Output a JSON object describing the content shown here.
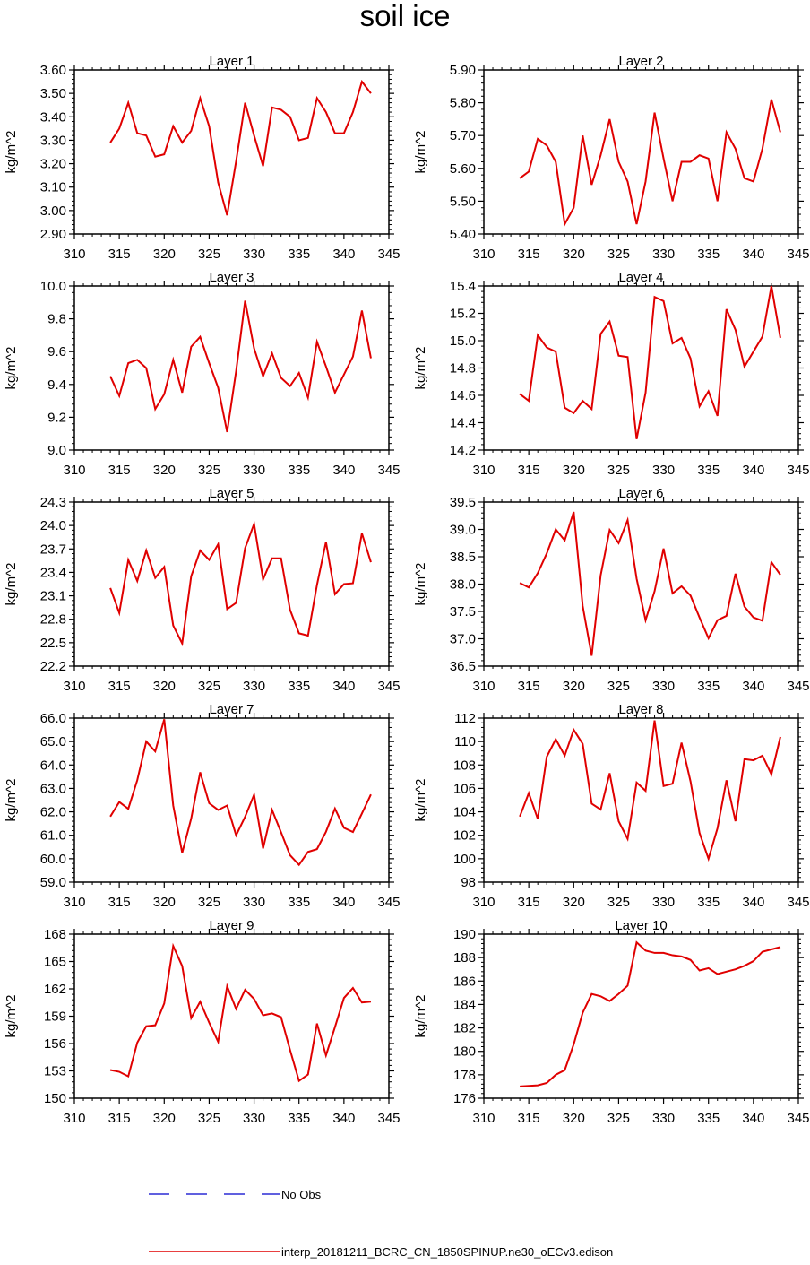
{
  "title": "soil ice",
  "legend": [
    {
      "label": "No Obs",
      "color": "#0000cc",
      "dash": true
    },
    {
      "label": "interp_20181211_BCRC_CN_1850SPINUP.ne30_oECv3.edison",
      "color": "#e00000",
      "dash": false
    }
  ],
  "chart_data": [
    {
      "type": "line",
      "title": "Layer 1",
      "xlabel": "",
      "ylabel": "kg/m^2",
      "xlim": [
        310,
        345
      ],
      "ylim": [
        2.9,
        3.6
      ],
      "xticks": [
        "310",
        "315",
        "320",
        "325",
        "330",
        "335",
        "340",
        "345"
      ],
      "yticks": [
        "2.90",
        "3.00",
        "3.10",
        "3.20",
        "3.30",
        "3.40",
        "3.50",
        "3.60"
      ],
      "x": [
        314,
        315,
        316,
        317,
        318,
        319,
        320,
        321,
        322,
        323,
        324,
        325,
        326,
        327,
        328,
        329,
        330,
        331,
        332,
        333,
        334,
        335,
        336,
        337,
        338,
        339,
        340,
        341,
        342,
        343
      ],
      "series": [
        {
          "color": "#e00000",
          "values": [
            3.29,
            3.35,
            3.46,
            3.33,
            3.32,
            3.23,
            3.24,
            3.36,
            3.29,
            3.34,
            3.48,
            3.36,
            3.12,
            2.98,
            3.21,
            3.46,
            3.32,
            3.19,
            3.44,
            3.43,
            3.4,
            3.3,
            3.31,
            3.48,
            3.42,
            3.33,
            3.33,
            3.42,
            3.55,
            3.5
          ]
        }
      ]
    },
    {
      "type": "line",
      "title": "Layer 2",
      "xlabel": "",
      "ylabel": "kg/m^2",
      "xlim": [
        310,
        345
      ],
      "ylim": [
        5.4,
        5.9
      ],
      "xticks": [
        "310",
        "315",
        "320",
        "325",
        "330",
        "335",
        "340",
        "345"
      ],
      "yticks": [
        "5.40",
        "5.50",
        "5.60",
        "5.70",
        "5.80",
        "5.90"
      ],
      "x": [
        314,
        315,
        316,
        317,
        318,
        319,
        320,
        321,
        322,
        323,
        324,
        325,
        326,
        327,
        328,
        329,
        330,
        331,
        332,
        333,
        334,
        335,
        336,
        337,
        338,
        339,
        340,
        341,
        342,
        343
      ],
      "series": [
        {
          "color": "#e00000",
          "values": [
            5.57,
            5.59,
            5.69,
            5.67,
            5.62,
            5.43,
            5.48,
            5.7,
            5.55,
            5.64,
            5.75,
            5.62,
            5.56,
            5.43,
            5.56,
            5.77,
            5.63,
            5.5,
            5.62,
            5.62,
            5.64,
            5.63,
            5.5,
            5.71,
            5.66,
            5.57,
            5.56,
            5.66,
            5.81,
            5.71
          ]
        }
      ]
    },
    {
      "type": "line",
      "title": "Layer 3",
      "xlabel": "",
      "ylabel": "kg/m^2",
      "xlim": [
        310,
        345
      ],
      "ylim": [
        9.0,
        10.0
      ],
      "xticks": [
        "310",
        "315",
        "320",
        "325",
        "330",
        "335",
        "340",
        "345"
      ],
      "yticks": [
        "9.0",
        "9.2",
        "9.4",
        "9.6",
        "9.8",
        "10.0"
      ],
      "x": [
        314,
        315,
        316,
        317,
        318,
        319,
        320,
        321,
        322,
        323,
        324,
        325,
        326,
        327,
        328,
        329,
        330,
        331,
        332,
        333,
        334,
        335,
        336,
        337,
        338,
        339,
        340,
        341,
        342,
        343
      ],
      "series": [
        {
          "color": "#e00000",
          "values": [
            9.45,
            9.33,
            9.53,
            9.55,
            9.5,
            9.25,
            9.34,
            9.55,
            9.35,
            9.63,
            9.69,
            9.53,
            9.38,
            9.11,
            9.48,
            9.91,
            9.62,
            9.45,
            9.59,
            9.44,
            9.39,
            9.47,
            9.32,
            9.66,
            9.51,
            9.35,
            9.46,
            9.57,
            9.85,
            9.56
          ]
        }
      ]
    },
    {
      "type": "line",
      "title": "Layer 4",
      "xlabel": "",
      "ylabel": "kg/m^2",
      "xlim": [
        310,
        345
      ],
      "ylim": [
        14.2,
        15.4
      ],
      "xticks": [
        "310",
        "315",
        "320",
        "325",
        "330",
        "335",
        "340",
        "345"
      ],
      "yticks": [
        "14.2",
        "14.4",
        "14.6",
        "14.8",
        "15.0",
        "15.2",
        "15.4"
      ],
      "x": [
        314,
        315,
        316,
        317,
        318,
        319,
        320,
        321,
        322,
        323,
        324,
        325,
        326,
        327,
        328,
        329,
        330,
        331,
        332,
        333,
        334,
        335,
        336,
        337,
        338,
        339,
        340,
        341,
        342,
        343
      ],
      "series": [
        {
          "color": "#e00000",
          "values": [
            14.61,
            14.56,
            15.04,
            14.95,
            14.92,
            14.51,
            14.47,
            14.56,
            14.5,
            15.05,
            15.14,
            14.89,
            14.88,
            14.28,
            14.62,
            15.32,
            15.29,
            14.98,
            15.02,
            14.87,
            14.52,
            14.63,
            14.45,
            15.23,
            15.08,
            14.81,
            14.92,
            15.03,
            15.4,
            15.02
          ]
        }
      ]
    },
    {
      "type": "line",
      "title": "Layer 5",
      "xlabel": "",
      "ylabel": "kg/m^2",
      "xlim": [
        310,
        345
      ],
      "ylim": [
        22.2,
        24.3
      ],
      "xticks": [
        "310",
        "315",
        "320",
        "325",
        "330",
        "335",
        "340",
        "345"
      ],
      "yticks": [
        "22.2",
        "22.5",
        "22.8",
        "23.1",
        "23.4",
        "23.7",
        "24.0",
        "24.3"
      ],
      "x": [
        314,
        315,
        316,
        317,
        318,
        319,
        320,
        321,
        322,
        323,
        324,
        325,
        326,
        327,
        328,
        329,
        330,
        331,
        332,
        333,
        334,
        335,
        336,
        337,
        338,
        339,
        340,
        341,
        342,
        343
      ],
      "series": [
        {
          "color": "#e00000",
          "values": [
            23.2,
            22.88,
            23.56,
            23.29,
            23.68,
            23.33,
            23.47,
            22.72,
            22.49,
            23.35,
            23.68,
            23.56,
            23.76,
            22.93,
            23.01,
            23.71,
            24.02,
            23.31,
            23.58,
            23.58,
            22.92,
            22.62,
            22.59,
            23.24,
            23.79,
            23.12,
            23.25,
            23.26,
            23.9,
            23.53
          ]
        }
      ]
    },
    {
      "type": "line",
      "title": "Layer 6",
      "xlabel": "",
      "ylabel": "kg/m^2",
      "xlim": [
        310,
        345
      ],
      "ylim": [
        36.5,
        39.5
      ],
      "xticks": [
        "310",
        "315",
        "320",
        "325",
        "330",
        "335",
        "340",
        "345"
      ],
      "yticks": [
        "36.5",
        "37.0",
        "37.5",
        "38.0",
        "38.5",
        "39.0",
        "39.5"
      ],
      "x": [
        314,
        315,
        316,
        317,
        318,
        319,
        320,
        321,
        322,
        323,
        324,
        325,
        326,
        327,
        328,
        329,
        330,
        331,
        332,
        333,
        334,
        335,
        336,
        337,
        338,
        339,
        340,
        341,
        342,
        343
      ],
      "series": [
        {
          "color": "#e00000",
          "values": [
            38.02,
            37.94,
            38.2,
            38.56,
            39.0,
            38.8,
            39.32,
            37.6,
            36.69,
            38.16,
            38.99,
            38.75,
            39.17,
            38.1,
            37.34,
            37.87,
            38.65,
            37.83,
            37.96,
            37.79,
            37.39,
            37.01,
            37.34,
            37.42,
            38.19,
            37.59,
            37.39,
            37.33,
            38.4,
            38.17
          ]
        }
      ]
    },
    {
      "type": "line",
      "title": "Layer 7",
      "xlabel": "",
      "ylabel": "kg/m^2",
      "xlim": [
        310,
        345
      ],
      "ylim": [
        59.0,
        66.0
      ],
      "xticks": [
        "310",
        "315",
        "320",
        "325",
        "330",
        "335",
        "340",
        "345"
      ],
      "yticks": [
        "59.0",
        "60.0",
        "61.0",
        "62.0",
        "63.0",
        "64.0",
        "65.0",
        "66.0"
      ],
      "x": [
        314,
        315,
        316,
        317,
        318,
        319,
        320,
        321,
        322,
        323,
        324,
        325,
        326,
        327,
        328,
        329,
        330,
        331,
        332,
        333,
        334,
        335,
        336,
        337,
        338,
        339,
        340,
        341,
        342,
        343
      ],
      "series": [
        {
          "color": "#e00000",
          "values": [
            61.8,
            62.42,
            62.13,
            63.35,
            65.0,
            64.58,
            65.95,
            62.27,
            60.25,
            61.71,
            63.69,
            62.37,
            62.08,
            62.27,
            61.0,
            61.79,
            62.73,
            60.44,
            62.08,
            61.13,
            60.15,
            59.74,
            60.29,
            60.41,
            61.15,
            62.14,
            61.32,
            61.14,
            61.93,
            62.74
          ]
        }
      ]
    },
    {
      "type": "line",
      "title": "Layer 8",
      "xlabel": "",
      "ylabel": "kg/m^2",
      "xlim": [
        310,
        345
      ],
      "ylim": [
        98,
        112
      ],
      "xticks": [
        "310",
        "315",
        "320",
        "325",
        "330",
        "335",
        "340",
        "345"
      ],
      "yticks": [
        "98",
        "100",
        "102",
        "104",
        "106",
        "108",
        "110",
        "112"
      ],
      "x": [
        314,
        315,
        316,
        317,
        318,
        319,
        320,
        321,
        322,
        323,
        324,
        325,
        326,
        327,
        328,
        329,
        330,
        331,
        332,
        333,
        334,
        335,
        336,
        337,
        338,
        339,
        340,
        341,
        342,
        343
      ],
      "series": [
        {
          "color": "#e00000",
          "values": [
            103.6,
            105.6,
            103.4,
            108.7,
            110.2,
            108.8,
            111.0,
            109.8,
            104.7,
            104.2,
            107.3,
            103.2,
            101.7,
            106.5,
            105.8,
            111.8,
            106.2,
            106.4,
            109.9,
            106.6,
            102.2,
            100.0,
            102.6,
            106.7,
            103.2,
            108.5,
            108.4,
            108.8,
            107.2,
            110.4
          ]
        }
      ]
    },
    {
      "type": "line",
      "title": "Layer 9",
      "xlabel": "",
      "ylabel": "kg/m^2",
      "xlim": [
        310,
        345
      ],
      "ylim": [
        150,
        168
      ],
      "xticks": [
        "310",
        "315",
        "320",
        "325",
        "330",
        "335",
        "340",
        "345"
      ],
      "yticks": [
        "150",
        "153",
        "156",
        "159",
        "162",
        "165",
        "168"
      ],
      "x": [
        314,
        315,
        316,
        317,
        318,
        319,
        320,
        321,
        322,
        323,
        324,
        325,
        326,
        327,
        328,
        329,
        330,
        331,
        332,
        333,
        334,
        335,
        336,
        337,
        338,
        339,
        340,
        341,
        342,
        343
      ],
      "series": [
        {
          "color": "#e00000",
          "values": [
            153.1,
            152.9,
            152.4,
            156.1,
            157.9,
            158.0,
            160.4,
            166.7,
            164.5,
            158.8,
            160.6,
            158.3,
            156.2,
            162.3,
            159.8,
            161.9,
            160.9,
            159.1,
            159.3,
            158.9,
            155.3,
            151.9,
            152.6,
            158.2,
            154.7,
            157.8,
            161.0,
            162.1,
            160.5,
            160.6
          ]
        }
      ]
    },
    {
      "type": "line",
      "title": "Layer 10",
      "xlabel": "",
      "ylabel": "kg/m^2",
      "xlim": [
        310,
        345
      ],
      "ylim": [
        176,
        190
      ],
      "xticks": [
        "310",
        "315",
        "320",
        "325",
        "330",
        "335",
        "340",
        "345"
      ],
      "yticks": [
        "176",
        "178",
        "180",
        "182",
        "184",
        "186",
        "188",
        "190"
      ],
      "x": [
        314,
        315,
        316,
        317,
        318,
        319,
        320,
        321,
        322,
        323,
        324,
        325,
        326,
        327,
        328,
        329,
        330,
        331,
        332,
        333,
        334,
        335,
        336,
        337,
        338,
        339,
        340,
        341,
        342,
        343
      ],
      "series": [
        {
          "color": "#e00000",
          "values": [
            177.0,
            177.05,
            177.1,
            177.3,
            178.0,
            178.4,
            180.6,
            183.3,
            184.9,
            184.7,
            184.3,
            184.9,
            185.6,
            189.3,
            188.6,
            188.4,
            188.4,
            188.2,
            188.1,
            187.8,
            186.9,
            187.1,
            186.6,
            186.8,
            187.0,
            187.3,
            187.7,
            188.5,
            188.7,
            188.9
          ]
        }
      ]
    }
  ]
}
